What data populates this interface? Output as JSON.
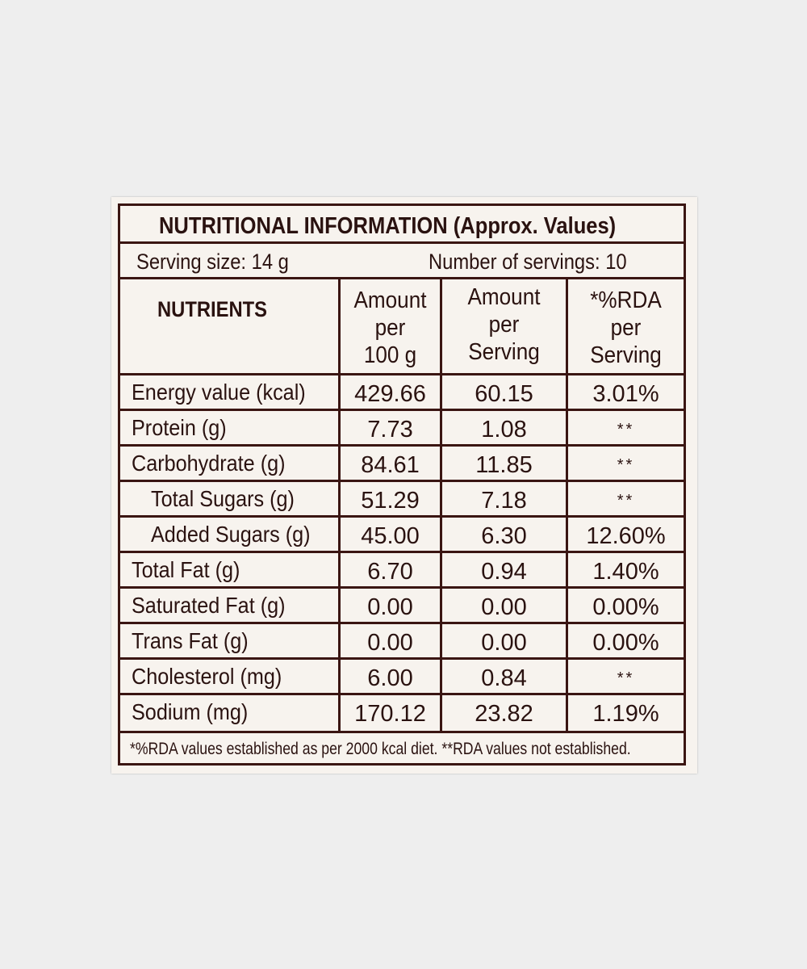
{
  "label": {
    "title": "NUTRITIONAL INFORMATION (Approx. Values)",
    "serving_size": "Serving size: 14 g",
    "servings_count": "Number of servings: 10",
    "headers": {
      "nutrients": "NUTRIENTS",
      "per_100g": [
        "Amount",
        "per",
        "100 g"
      ],
      "per_serving": [
        "Amount",
        "per",
        "Serving"
      ],
      "rda": [
        "*%RDA",
        "per",
        "Serving"
      ]
    },
    "rows": [
      {
        "name": "Energy value (kcal)",
        "per_100g": "429.66",
        "per_serving": "60.15",
        "rda": "3.01%",
        "indent": false
      },
      {
        "name": "Protein (g)",
        "per_100g": "7.73",
        "per_serving": "1.08",
        "rda": "**",
        "indent": false
      },
      {
        "name": "Carbohydrate (g)",
        "per_100g": "84.61",
        "per_serving": "11.85",
        "rda": "**",
        "indent": false
      },
      {
        "name": "Total Sugars (g)",
        "per_100g": "51.29",
        "per_serving": "7.18",
        "rda": "**",
        "indent": true
      },
      {
        "name": "Added Sugars (g)",
        "per_100g": "45.00",
        "per_serving": "6.30",
        "rda": "12.60%",
        "indent": true
      },
      {
        "name": "Total Fat (g)",
        "per_100g": "6.70",
        "per_serving": "0.94",
        "rda": "1.40%",
        "indent": false
      },
      {
        "name": "Saturated Fat (g)",
        "per_100g": "0.00",
        "per_serving": "0.00",
        "rda": "0.00%",
        "indent": false
      },
      {
        "name": "Trans Fat (g)",
        "per_100g": "0.00",
        "per_serving": "0.00",
        "rda": "0.00%",
        "indent": false
      },
      {
        "name": "Cholesterol (mg)",
        "per_100g": "6.00",
        "per_serving": "0.84",
        "rda": "**",
        "indent": false
      },
      {
        "name": "Sodium (mg)",
        "per_100g": "170.12",
        "per_serving": "23.82",
        "rda": "1.19%",
        "indent": false
      }
    ],
    "footnote": "*%RDA values established as per 2000 kcal diet. **RDA values not established."
  },
  "colors": {
    "ink": "#2a1210",
    "rule": "#3a1512",
    "label_background": "#f7f3ee",
    "page_background": "#eeeeee"
  }
}
